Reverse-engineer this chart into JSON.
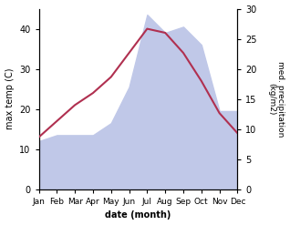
{
  "months": [
    "Jan",
    "Feb",
    "Mar",
    "Apr",
    "May",
    "Jun",
    "Jul",
    "Aug",
    "Sep",
    "Oct",
    "Nov",
    "Dec"
  ],
  "temp_max": [
    13,
    17,
    21,
    24,
    28,
    34,
    40,
    39,
    34,
    27,
    19,
    14
  ],
  "precip": [
    8,
    9,
    9,
    9,
    11,
    17,
    29,
    26,
    27,
    24,
    13,
    13
  ],
  "temp_color": "#b03050",
  "precip_color": "#c0c8e8",
  "ylabel_left": "max temp (C)",
  "ylabel_right": "med. precipitation\n(kg/m2)",
  "xlabel": "date (month)",
  "ylim_left": [
    0,
    45
  ],
  "ylim_right": [
    0,
    30
  ],
  "yticks_left": [
    0,
    10,
    20,
    30,
    40
  ],
  "yticks_right": [
    0,
    5,
    10,
    15,
    20,
    25,
    30
  ],
  "background_color": "#ffffff",
  "fig_width": 3.18,
  "fig_height": 2.47,
  "dpi": 100
}
